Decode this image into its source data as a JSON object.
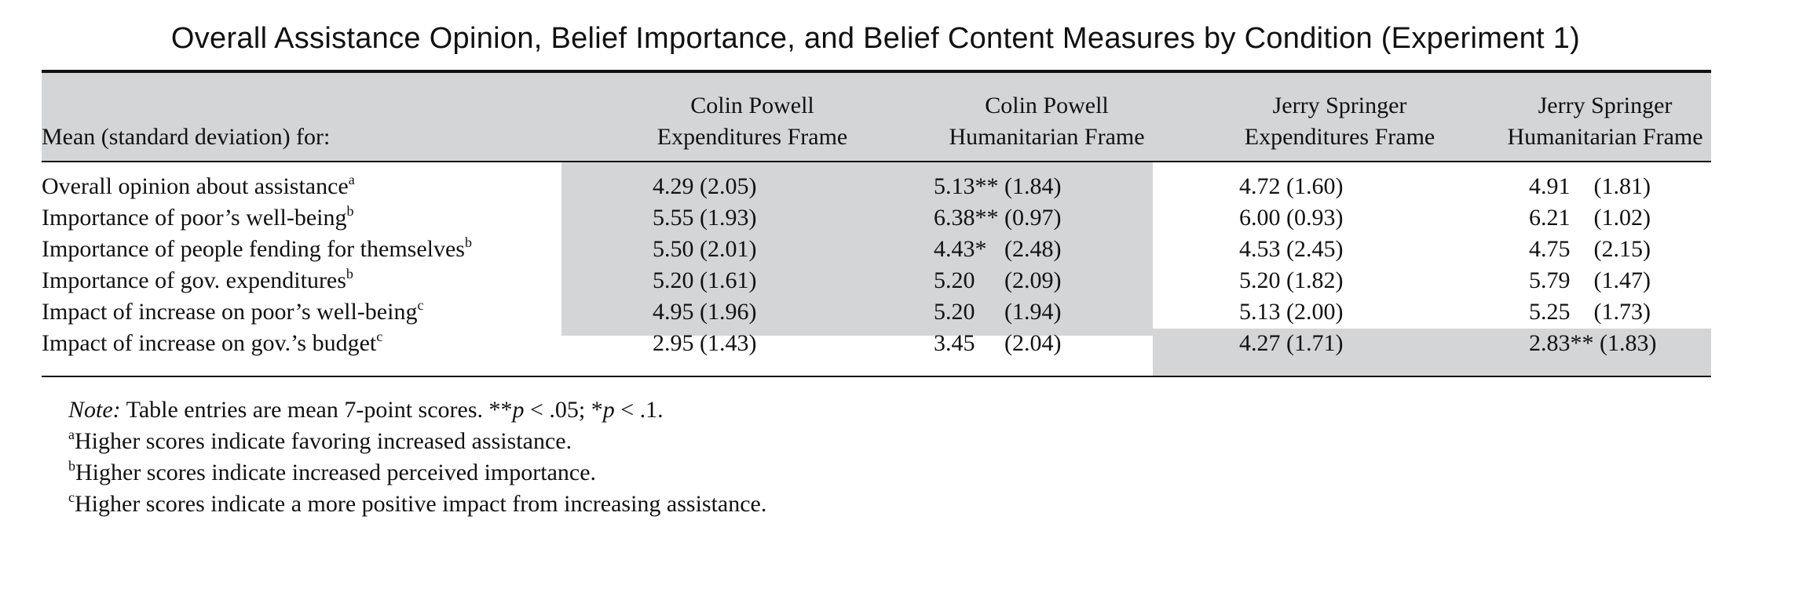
{
  "title": "Overall Assistance Opinion, Belief Importance, and Belief Content Measures by Condition (Experiment 1)",
  "table": {
    "stub_header": "Mean (standard deviation) for:",
    "columns": [
      {
        "line1": "Colin Powell",
        "line2": "Expenditures Frame"
      },
      {
        "line1": "Colin Powell",
        "line2": "Humanitarian Frame"
      },
      {
        "line1": "Jerry Springer",
        "line2": "Expenditures Frame"
      },
      {
        "line1": "Jerry Springer",
        "line2": "Humanitarian Frame"
      }
    ],
    "rows": [
      {
        "label": "Overall opinion about assistance",
        "sup": "a",
        "cells": [
          "4.29 (2.05)",
          "5.13** (1.84)",
          "4.72 (1.60)",
          "4.91    (1.81)"
        ]
      },
      {
        "label": "Importance of poor’s well-being",
        "sup": "b",
        "cells": [
          "5.55 (1.93)",
          "6.38** (0.97)",
          "6.00 (0.93)",
          "6.21    (1.02)"
        ]
      },
      {
        "label": "Importance of people fending for themselves",
        "sup": "b",
        "cells": [
          "5.50 (2.01)",
          "4.43*   (2.48)",
          "4.53 (2.45)",
          "4.75    (2.15)"
        ]
      },
      {
        "label": "Importance of gov. expenditures",
        "sup": "b",
        "cells": [
          "5.20 (1.61)",
          "5.20     (2.09)",
          "5.20 (1.82)",
          "5.79    (1.47)"
        ]
      },
      {
        "label": "Impact of increase on poor’s well-being",
        "sup": "c",
        "cells": [
          "4.95 (1.96)",
          "5.20     (1.94)",
          "5.13 (2.00)",
          "5.25    (1.73)"
        ]
      },
      {
        "label": "Impact of increase on gov.’s budget",
        "sup": "c",
        "cells": [
          "2.95 (1.43)",
          "3.45     (2.04)",
          "4.27 (1.71)",
          "2.83** (1.83)"
        ]
      }
    ]
  },
  "notes": {
    "note_label": "Note:",
    "note_text_1": " Table entries are mean 7-point scores. **",
    "p1": "p",
    "note_text_2": " < .05; *",
    "p2": "p",
    "note_text_3": " < .1.",
    "a_sup": "a",
    "a_text": "Higher scores indicate favoring increased assistance.",
    "b_sup": "b",
    "b_text": "Higher scores indicate increased perceived importance.",
    "c_sup": "c",
    "c_text": "Higher scores indicate a more positive impact from increasing assistance."
  },
  "colors": {
    "shading": "#d4d5d7",
    "rule": "#111111"
  }
}
